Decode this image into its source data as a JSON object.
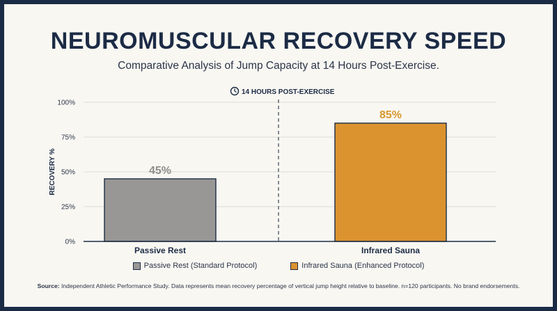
{
  "header": {
    "title": "NEUROMUSCULAR RECOVERY SPEED",
    "subtitle": "Comparative Analysis of Jump Capacity at 14 Hours Post-Exercise."
  },
  "chart_data": {
    "type": "bar",
    "categories": [
      "Passive Rest",
      "Infrared Sauna"
    ],
    "values": [
      45,
      85
    ],
    "value_labels": [
      "45%",
      "85%"
    ],
    "colors": [
      "#999795",
      "#db9330"
    ],
    "label_colors": [
      "#8f8e8c",
      "#d9982e"
    ],
    "ylabel": "RECOVERY %",
    "ylim": [
      0,
      100
    ],
    "yticks": [
      0,
      25,
      50,
      75,
      100
    ],
    "ytick_labels": [
      "0%",
      "25%",
      "50%",
      "75%",
      "100%"
    ],
    "grid": true,
    "annotation": "14 HOURS POST-EXERCISE",
    "annotation_icon": "clock-icon"
  },
  "legend": {
    "position": "bottom-center",
    "items": [
      {
        "label": "Passive Rest (Standard Protocol)",
        "color": "#999795"
      },
      {
        "label": "Infrared Sauna (Enhanced Protocol)",
        "color": "#db9330"
      }
    ]
  },
  "footer": {
    "source_label": "Source:",
    "source_text": "Independent Athletic Performance Study. Data represents mean recovery percentage of vertical jump height relative to baseline. n=120 participants. No brand endorsements."
  },
  "colors": {
    "frame": "#1c2b45",
    "background": "#f8f7f2",
    "axis": "#1c2b45",
    "grid": "#dcdcd6"
  }
}
